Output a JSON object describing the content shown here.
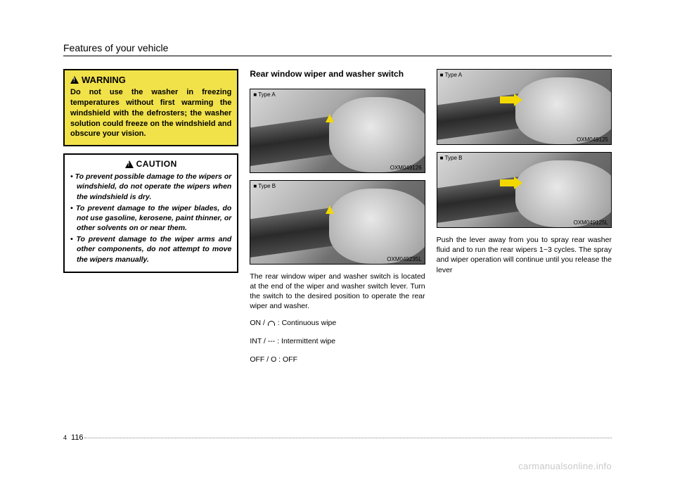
{
  "header": "Features of your vehicle",
  "warning": {
    "title": "WARNING",
    "body": "Do not use the washer in freezing temperatures without first warming the windshield with the defrosters; the washer solution could freeze on the windshield and obscure your vision."
  },
  "caution": {
    "title": "CAUTION",
    "items": [
      "To prevent possible damage to the wipers or windshield, do not operate the wipers when the windshield is dry.",
      "To prevent damage to the wiper blades, do not use gasoline, kerosene, paint thinner, or other solvents on or near them.",
      "To prevent damage to the wiper arms and other components, do not attempt to move the wipers manually."
    ]
  },
  "center": {
    "heading": "Rear window wiper and washer switch",
    "figA": {
      "type": "■ Type A",
      "code": "OXM049126"
    },
    "figB": {
      "type": "■ Type B",
      "code": "OXM049235L"
    },
    "body": "The rear window wiper and washer switch is located at the end of the wiper and washer switch lever. Turn the switch to the desired position to operate the rear wiper and washer.",
    "line_on_pre": "ON / ",
    "line_on_post": " : Continuous wipe",
    "line_int": "INT / --- : Intermittent wipe",
    "line_off": "OFF / O : OFF"
  },
  "right": {
    "figA": {
      "type": "■ Type A",
      "code": "OXM049125"
    },
    "figB": {
      "type": "■ Type B",
      "code": "OXM049125L"
    },
    "body": "Push the lever away from you to spray rear washer fluid and to run the rear wipers 1~3 cycles. The spray and wiper operation will continue until you release the lever"
  },
  "footer": {
    "chapter": "4",
    "page": "116"
  },
  "watermark": "carmanualsonline.info",
  "colors": {
    "warning_bg": "#f2e24a",
    "arrow": "#f2d800"
  }
}
